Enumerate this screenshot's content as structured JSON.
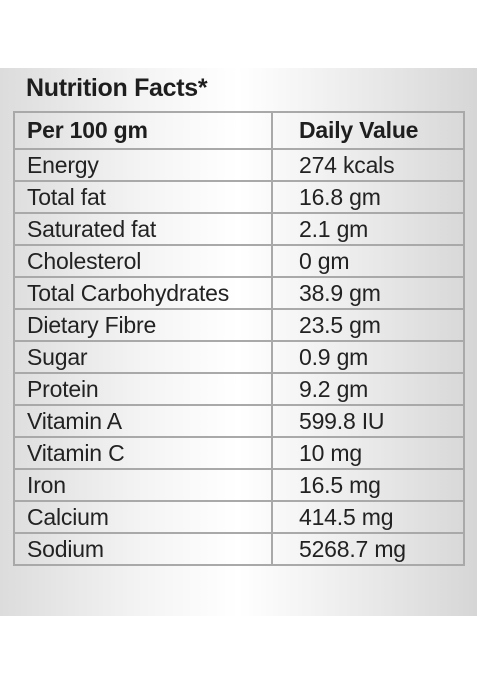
{
  "title": "Nutrition Facts*",
  "table": {
    "headers": [
      "Per 100 gm",
      "Daily Value"
    ],
    "rows": [
      {
        "nutrient": "Energy",
        "value": "274 kcals"
      },
      {
        "nutrient": "Total fat",
        "value": "16.8 gm"
      },
      {
        "nutrient": "Saturated fat",
        "value": "2.1 gm"
      },
      {
        "nutrient": "Cholesterol",
        "value": "0 gm"
      },
      {
        "nutrient": "Total Carbohydrates",
        "value": "38.9 gm"
      },
      {
        "nutrient": "Dietary Fibre",
        "value": "23.5 gm"
      },
      {
        "nutrient": "Sugar",
        "value": "0.9 gm"
      },
      {
        "nutrient": "Protein",
        "value": "9.2 gm"
      },
      {
        "nutrient": "Vitamin A",
        "value": "599.8 IU"
      },
      {
        "nutrient": "Vitamin C",
        "value": "10 mg"
      },
      {
        "nutrient": "Iron",
        "value": "16.5 mg"
      },
      {
        "nutrient": "Calcium",
        "value": "414.5 mg"
      },
      {
        "nutrient": "Sodium",
        "value": "5268.7 mg"
      }
    ]
  }
}
